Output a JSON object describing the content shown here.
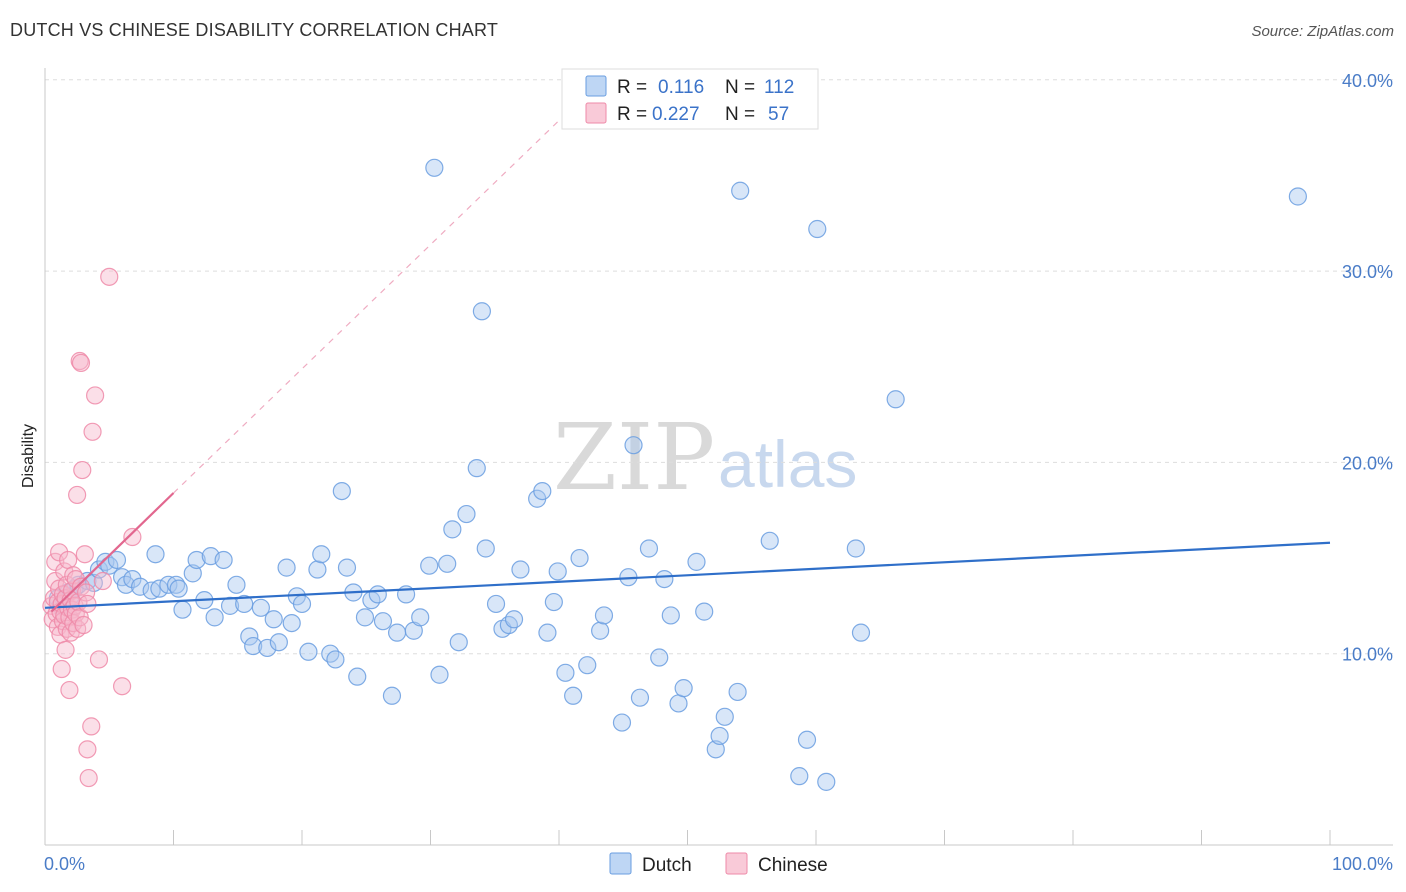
{
  "header": {
    "title": "DUTCH VS CHINESE DISABILITY CORRELATION CHART",
    "source": "Source: ZipAtlas.com"
  },
  "watermark": {
    "zip": "ZIP",
    "atlas": "atlas"
  },
  "legend_top": {
    "r_label": "R =",
    "n_label": "N =",
    "rows": [
      {
        "series": "Dutch",
        "r": "0.116",
        "n": "112",
        "color": "#a8c8f0"
      },
      {
        "series": "Chinese",
        "r": "0.227",
        "n": "57",
        "color": "#f7b8cb"
      }
    ]
  },
  "legend_bottom": [
    {
      "name": "Dutch",
      "color": "#a8c8f0"
    },
    {
      "name": "Chinese",
      "color": "#f7b8cb"
    }
  ],
  "colors": {
    "dutch_fill": "#a8c8f0",
    "dutch_stroke": "#6a9ee0",
    "dutch_line": "#2f6fc9",
    "chinese_fill": "#f7b8cb",
    "chinese_stroke": "#ee8aa8",
    "chinese_line": "#e2678f",
    "grid": "#dddddd",
    "tick_text": "#4a7cc7"
  },
  "chart_data": {
    "type": "scatter",
    "title": "DUTCH VS CHINESE DISABILITY CORRELATION CHART",
    "xlabel": "",
    "ylabel": "Disability",
    "xlim": [
      0,
      100
    ],
    "ylim": [
      0,
      41
    ],
    "x_tick_labels": [
      "0.0%",
      "100.0%"
    ],
    "y_ticks": [
      10,
      20,
      30,
      40
    ],
    "y_tick_labels": [
      "10.0%",
      "20.0%",
      "30.0%",
      "40.0%"
    ],
    "grid": true,
    "legend_position": "top-center",
    "series": [
      {
        "name": "Dutch",
        "r": 0.116,
        "n": 112,
        "trend": {
          "x": [
            0,
            100
          ],
          "y": [
            12.4,
            15.8
          ]
        },
        "points": [
          [
            1.0,
            12.9
          ],
          [
            1.2,
            12.5
          ],
          [
            1.5,
            12.8
          ],
          [
            1.8,
            13.2
          ],
          [
            2.0,
            13.0
          ],
          [
            2.3,
            13.4
          ],
          [
            2.6,
            13.6
          ],
          [
            3.3,
            13.8
          ],
          [
            3.8,
            13.7
          ],
          [
            4.2,
            14.4
          ],
          [
            4.7,
            14.8
          ],
          [
            5.0,
            14.6
          ],
          [
            5.6,
            14.9
          ],
          [
            6.0,
            14.0
          ],
          [
            6.3,
            13.6
          ],
          [
            6.8,
            13.9
          ],
          [
            7.4,
            13.5
          ],
          [
            8.3,
            13.3
          ],
          [
            8.6,
            15.2
          ],
          [
            8.9,
            13.4
          ],
          [
            9.6,
            13.6
          ],
          [
            10.2,
            13.6
          ],
          [
            10.4,
            13.4
          ],
          [
            10.7,
            12.3
          ],
          [
            11.5,
            14.2
          ],
          [
            11.8,
            14.9
          ],
          [
            12.4,
            12.8
          ],
          [
            12.9,
            15.1
          ],
          [
            13.2,
            11.9
          ],
          [
            13.9,
            14.9
          ],
          [
            14.4,
            12.5
          ],
          [
            14.9,
            13.6
          ],
          [
            15.5,
            12.6
          ],
          [
            15.9,
            10.9
          ],
          [
            16.2,
            10.4
          ],
          [
            16.8,
            12.4
          ],
          [
            17.3,
            10.3
          ],
          [
            17.8,
            11.8
          ],
          [
            18.2,
            10.6
          ],
          [
            18.8,
            14.5
          ],
          [
            19.2,
            11.6
          ],
          [
            19.6,
            13.0
          ],
          [
            20.0,
            12.6
          ],
          [
            20.5,
            10.1
          ],
          [
            21.2,
            14.4
          ],
          [
            21.5,
            15.2
          ],
          [
            22.2,
            10.0
          ],
          [
            22.6,
            9.7
          ],
          [
            23.5,
            14.5
          ],
          [
            23.1,
            18.5
          ],
          [
            24.0,
            13.2
          ],
          [
            24.3,
            8.8
          ],
          [
            24.9,
            11.9
          ],
          [
            25.4,
            12.8
          ],
          [
            25.9,
            13.1
          ],
          [
            26.3,
            11.7
          ],
          [
            27.0,
            7.8
          ],
          [
            27.4,
            11.1
          ],
          [
            28.1,
            13.1
          ],
          [
            28.7,
            11.2
          ],
          [
            29.2,
            11.9
          ],
          [
            29.9,
            14.6
          ],
          [
            30.3,
            35.4
          ],
          [
            30.7,
            8.9
          ],
          [
            31.3,
            14.7
          ],
          [
            31.7,
            16.5
          ],
          [
            32.2,
            10.6
          ],
          [
            32.8,
            17.3
          ],
          [
            33.6,
            19.7
          ],
          [
            34.0,
            27.9
          ],
          [
            34.3,
            15.5
          ],
          [
            35.1,
            12.6
          ],
          [
            35.6,
            11.3
          ],
          [
            36.1,
            11.5
          ],
          [
            36.5,
            11.8
          ],
          [
            37.0,
            14.4
          ],
          [
            38.3,
            18.1
          ],
          [
            38.7,
            18.5
          ],
          [
            39.1,
            11.1
          ],
          [
            39.6,
            12.7
          ],
          [
            39.9,
            14.3
          ],
          [
            40.5,
            9.0
          ],
          [
            41.1,
            7.8
          ],
          [
            41.6,
            15.0
          ],
          [
            42.2,
            9.4
          ],
          [
            43.2,
            11.2
          ],
          [
            43.5,
            12.0
          ],
          [
            44.9,
            6.4
          ],
          [
            45.4,
            14.0
          ],
          [
            45.8,
            20.9
          ],
          [
            46.3,
            7.7
          ],
          [
            47.0,
            15.5
          ],
          [
            47.8,
            9.8
          ],
          [
            48.2,
            13.9
          ],
          [
            48.7,
            12.0
          ],
          [
            49.3,
            7.4
          ],
          [
            49.7,
            8.2
          ],
          [
            50.7,
            14.8
          ],
          [
            51.3,
            12.2
          ],
          [
            52.2,
            5.0
          ],
          [
            52.5,
            5.7
          ],
          [
            52.9,
            6.7
          ],
          [
            53.9,
            8.0
          ],
          [
            54.1,
            34.2
          ],
          [
            56.4,
            15.9
          ],
          [
            58.7,
            3.6
          ],
          [
            59.3,
            5.5
          ],
          [
            60.1,
            32.2
          ],
          [
            60.8,
            3.3
          ],
          [
            63.1,
            15.5
          ],
          [
            63.5,
            11.1
          ],
          [
            66.2,
            23.3
          ],
          [
            97.5,
            33.9
          ]
        ]
      },
      {
        "name": "Chinese",
        "r": 0.227,
        "n": 57,
        "trend": {
          "x": [
            0.5,
            10.0
          ],
          "y": [
            12.2,
            18.4
          ]
        },
        "trend_extended": {
          "x": [
            10.0,
            40.2
          ],
          "y": [
            18.4,
            38.0
          ]
        },
        "points": [
          [
            0.5,
            12.5
          ],
          [
            0.6,
            11.8
          ],
          [
            0.7,
            12.9
          ],
          [
            0.8,
            13.8
          ],
          [
            0.8,
            14.8
          ],
          [
            0.9,
            12.1
          ],
          [
            1.0,
            12.7
          ],
          [
            1.0,
            11.4
          ],
          [
            1.1,
            13.4
          ],
          [
            1.1,
            15.3
          ],
          [
            1.2,
            12.2
          ],
          [
            1.2,
            11.0
          ],
          [
            1.3,
            9.2
          ],
          [
            1.3,
            12.6
          ],
          [
            1.4,
            13.1
          ],
          [
            1.4,
            11.7
          ],
          [
            1.5,
            14.3
          ],
          [
            1.5,
            12.0
          ],
          [
            1.6,
            10.2
          ],
          [
            1.6,
            12.9
          ],
          [
            1.7,
            11.3
          ],
          [
            1.7,
            13.6
          ],
          [
            1.8,
            12.4
          ],
          [
            1.8,
            14.9
          ],
          [
            1.9,
            11.9
          ],
          [
            1.9,
            8.1
          ],
          [
            2.0,
            12.8
          ],
          [
            2.0,
            11.1
          ],
          [
            2.1,
            13.3
          ],
          [
            2.1,
            12.3
          ],
          [
            2.2,
            14.1
          ],
          [
            2.2,
            11.6
          ],
          [
            2.3,
            12.5
          ],
          [
            2.4,
            13.9
          ],
          [
            2.4,
            12.1
          ],
          [
            2.5,
            11.3
          ],
          [
            2.5,
            18.3
          ],
          [
            2.6,
            12.7
          ],
          [
            2.7,
            11.9
          ],
          [
            2.7,
            25.3
          ],
          [
            2.8,
            25.2
          ],
          [
            2.8,
            13.5
          ],
          [
            2.9,
            19.6
          ],
          [
            3.0,
            11.5
          ],
          [
            3.1,
            15.2
          ],
          [
            3.2,
            13.2
          ],
          [
            3.3,
            12.6
          ],
          [
            3.3,
            5.0
          ],
          [
            3.4,
            3.5
          ],
          [
            3.6,
            6.2
          ],
          [
            3.7,
            21.6
          ],
          [
            3.9,
            23.5
          ],
          [
            4.2,
            9.7
          ],
          [
            4.5,
            13.8
          ],
          [
            5.0,
            29.7
          ],
          [
            6.0,
            8.3
          ],
          [
            6.8,
            16.1
          ]
        ]
      }
    ]
  }
}
